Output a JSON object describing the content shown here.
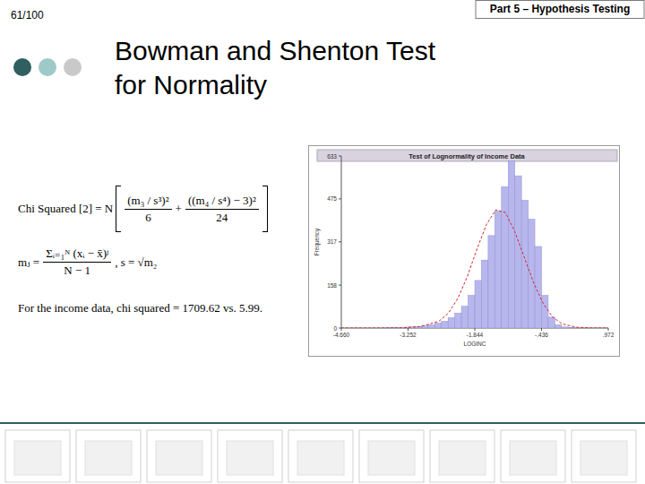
{
  "page": "61/100",
  "header": "Part 5 – Hypothesis Testing",
  "title": "Bowman and Shenton Test for Normality",
  "formula": {
    "lhs": "Chi Squared [2] = N",
    "term1_num": "(m₃ / s³)²",
    "term1_den": "6",
    "plus": "+",
    "term2_num": "((m₄ / s⁴) − 3)²",
    "term2_den": "24",
    "moment_lhs": "mⱼ =",
    "moment_num": "Σᵢ₌₁ᴺ (xᵢ − x̄)ʲ",
    "moment_den": "N − 1",
    "moment_tail": ",  s = √m₂"
  },
  "conclusion": "For the income data, chi squared = 1709.62 vs. 5.99.",
  "chart_data": {
    "type": "histogram",
    "title": "Test of Lognormality of Income Data",
    "x_label": "LOGINC",
    "y_label": "Frequency",
    "bins": [
      -4.66,
      -4.5192,
      -4.3784,
      -4.2376,
      -4.0968,
      -3.956,
      -3.8152,
      -3.6744,
      -3.5336,
      -3.3928,
      -3.252,
      -3.1112,
      -2.9704,
      -2.8296,
      -2.6888,
      -2.548,
      -2.4072,
      -2.2664,
      -2.1256,
      -1.9848,
      -1.844,
      -1.7032,
      -1.5624,
      -1.4216,
      -1.2808,
      -1.14,
      -0.9992,
      -0.8584,
      -0.7176,
      -0.5768,
      -0.436,
      -0.2952,
      -0.1544,
      -0.0136,
      0.1272,
      0.268,
      0.4088,
      0.5496,
      0.6904,
      0.8312,
      0.972
    ],
    "values": [
      0,
      0,
      0,
      0,
      0,
      0,
      0,
      1,
      2,
      3,
      4,
      6,
      8,
      12,
      18,
      25,
      38,
      55,
      80,
      120,
      175,
      250,
      340,
      430,
      520,
      615,
      560,
      470,
      400,
      300,
      120,
      40,
      12,
      4,
      1,
      0,
      0,
      0,
      0,
      0
    ],
    "color": "#b7b7ee",
    "xlim": [
      -4.66,
      0.972
    ],
    "ylim": [
      0,
      633
    ],
    "xticks": [
      {
        "value": -4.66,
        "label": "-4.660"
      },
      {
        "value": -3.252,
        "label": "-3.252"
      },
      {
        "value": -1.844,
        "label": "-1.844"
      },
      {
        "value": -0.436,
        "label": "-.436"
      },
      {
        "value": 0.972,
        "label": ".972"
      }
    ],
    "yticks": [
      0,
      158,
      317,
      475,
      633
    ],
    "grid": false,
    "overlay": {
      "type": "line",
      "x": [
        -4.66,
        -4.0,
        -3.4,
        -3.0,
        -2.6,
        -2.4,
        -2.2,
        -2.0,
        -1.8,
        -1.6,
        -1.4,
        -1.2,
        -1.0,
        -0.8,
        -0.6,
        -0.4,
        -0.2,
        0.0,
        0.3,
        0.6,
        0.972
      ],
      "values": [
        0,
        0,
        1,
        5,
        25,
        55,
        110,
        190,
        290,
        380,
        435,
        425,
        355,
        260,
        165,
        90,
        40,
        15,
        3,
        0.5,
        0
      ],
      "color": "#d62728",
      "line_style": "dashed"
    }
  }
}
